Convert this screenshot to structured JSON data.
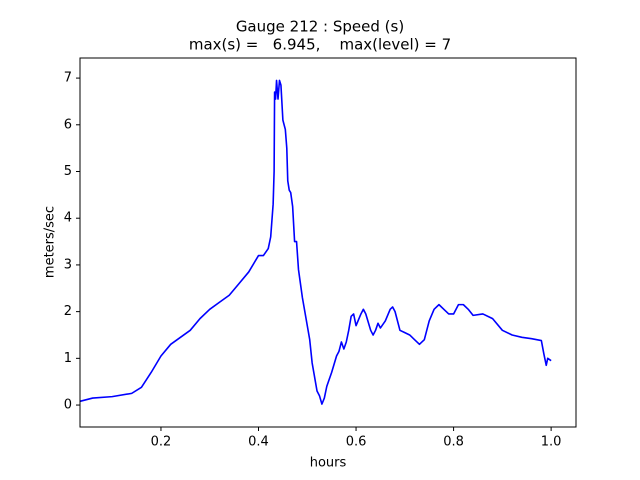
{
  "chart_data": {
    "type": "line",
    "title": "Gauge 212 : Speed (s)",
    "subtitle": "max(s) =   6.945,    max(level) = 7",
    "x_label": "hours",
    "y_label": "meters/sec",
    "xlim": [
      0.034,
      1.051
    ],
    "ylim": [
      -0.47,
      7.43
    ],
    "xticks": [
      0.2,
      0.4,
      0.6,
      0.8,
      {
        "value": 1.0,
        "label": "1.0"
      }
    ],
    "yticks": [
      0,
      1,
      2,
      3,
      4,
      5,
      6,
      7
    ],
    "series": [
      {
        "name": "speed",
        "color": "#0000ff",
        "x": [
          0.034,
          0.06,
          0.1,
          0.14,
          0.16,
          0.18,
          0.2,
          0.22,
          0.24,
          0.26,
          0.28,
          0.3,
          0.32,
          0.34,
          0.36,
          0.38,
          0.4,
          0.41,
          0.42,
          0.425,
          0.43,
          0.432,
          0.433,
          0.435,
          0.437,
          0.44,
          0.443,
          0.446,
          0.45,
          0.455,
          0.458,
          0.46,
          0.463,
          0.466,
          0.47,
          0.474,
          0.478,
          0.482,
          0.49,
          0.5,
          0.505,
          0.51,
          0.515,
          0.52,
          0.525,
          0.53,
          0.535,
          0.54,
          0.55,
          0.56,
          0.565,
          0.57,
          0.575,
          0.58,
          0.585,
          0.59,
          0.595,
          0.6,
          0.61,
          0.615,
          0.62,
          0.63,
          0.635,
          0.64,
          0.645,
          0.65,
          0.66,
          0.67,
          0.675,
          0.68,
          0.69,
          0.7,
          0.71,
          0.72,
          0.73,
          0.74,
          0.75,
          0.76,
          0.77,
          0.78,
          0.79,
          0.8,
          0.81,
          0.82,
          0.83,
          0.84,
          0.86,
          0.88,
          0.9,
          0.92,
          0.94,
          0.96,
          0.98,
          0.985,
          0.99,
          0.993,
          1.0
        ],
        "values": [
          0.08,
          0.15,
          0.18,
          0.25,
          0.38,
          0.7,
          1.05,
          1.3,
          1.45,
          1.6,
          1.85,
          2.05,
          2.2,
          2.35,
          2.6,
          2.85,
          3.2,
          3.2,
          3.35,
          3.6,
          4.3,
          5.0,
          6.7,
          6.55,
          6.95,
          6.55,
          6.95,
          6.85,
          6.1,
          5.9,
          5.5,
          4.8,
          4.6,
          4.55,
          4.25,
          3.5,
          3.5,
          2.9,
          2.3,
          1.7,
          1.4,
          0.9,
          0.6,
          0.3,
          0.2,
          0.02,
          0.15,
          0.4,
          0.7,
          1.05,
          1.15,
          1.35,
          1.2,
          1.35,
          1.6,
          1.9,
          1.95,
          1.7,
          1.95,
          2.05,
          1.95,
          1.6,
          1.5,
          1.6,
          1.75,
          1.65,
          1.8,
          2.05,
          2.1,
          2.0,
          1.6,
          1.55,
          1.5,
          1.4,
          1.3,
          1.4,
          1.8,
          2.05,
          2.15,
          2.05,
          1.95,
          1.95,
          2.15,
          2.15,
          2.05,
          1.92,
          1.95,
          1.85,
          1.6,
          1.5,
          1.45,
          1.42,
          1.38,
          1.1,
          0.85,
          1.0,
          0.95
        ]
      }
    ]
  }
}
